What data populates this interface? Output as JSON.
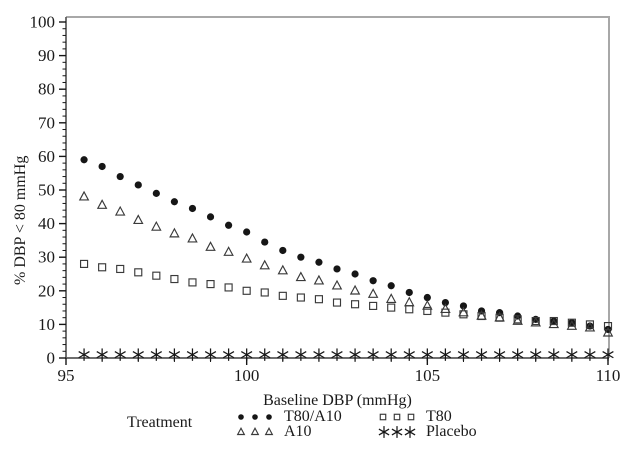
{
  "chart_data": {
    "type": "scatter",
    "title": "",
    "xlabel": "Baseline DBP (mmHg)",
    "ylabel": "% DBP < 80 mmHg",
    "xlim": [
      95,
      110
    ],
    "ylim": [
      0,
      100
    ],
    "x_tick_labels": [
      "95",
      "100",
      "105",
      "110"
    ],
    "y_tick_labels": [
      "0",
      "10",
      "20",
      "30",
      "40",
      "50",
      "60",
      "70",
      "80",
      "90",
      "100"
    ],
    "x_minor_step": 1,
    "y_minor_step": 2,
    "grid": false,
    "legend_position": "bottom",
    "legend_title": "Treatment",
    "x": [
      95.5,
      96,
      96.5,
      97,
      97.5,
      98,
      98.5,
      99,
      99.5,
      100,
      100.5,
      101,
      101.5,
      102,
      102.5,
      103,
      103.5,
      104,
      104.5,
      105,
      105.5,
      106,
      106.5,
      107,
      107.5,
      108,
      108.5,
      109,
      109.5,
      110
    ],
    "series": [
      {
        "name": "T80/A10",
        "marker": "filled-circle",
        "values": [
          59,
          57,
          54,
          51.5,
          49,
          46.5,
          44.5,
          42,
          39.5,
          37.5,
          34.5,
          32,
          30,
          28.5,
          26.5,
          25,
          23,
          21.5,
          19.5,
          18,
          16.5,
          15.5,
          14,
          13.5,
          12.5,
          11.5,
          11,
          10.5,
          9.5,
          8.5
        ]
      },
      {
        "name": "A10",
        "marker": "open-triangle",
        "values": [
          48,
          45.5,
          43.5,
          41,
          39,
          37,
          35.5,
          33,
          31.5,
          29.5,
          27.5,
          26,
          24,
          23,
          21.5,
          20,
          19,
          17.5,
          16.5,
          15.5,
          14.5,
          13.5,
          12.5,
          12,
          11,
          10.5,
          10,
          9.5,
          9,
          7.5
        ]
      },
      {
        "name": "T80",
        "marker": "open-square",
        "values": [
          28,
          27,
          26.5,
          25.5,
          24.5,
          23.5,
          22.5,
          22,
          21,
          20,
          19.5,
          18.5,
          18,
          17.5,
          16.5,
          16,
          15.5,
          15,
          14.5,
          14,
          13.5,
          13,
          12.5,
          12,
          11.5,
          11,
          11,
          10.5,
          10,
          9.5
        ]
      },
      {
        "name": "Placebo",
        "marker": "asterisk",
        "values": [
          1,
          1,
          1,
          1,
          1,
          1,
          1,
          1,
          1,
          1,
          1,
          1,
          1,
          1,
          1,
          1,
          1,
          1,
          1,
          1,
          1,
          1,
          1,
          1,
          1,
          1,
          1,
          1,
          1,
          1
        ]
      }
    ],
    "colors": {
      "marker": "#161616",
      "open_marker_stroke": "#3a3a3a",
      "axis": "#5a5a5a",
      "frame": "#a8a8a8",
      "text": "#1a1a1a"
    }
  }
}
